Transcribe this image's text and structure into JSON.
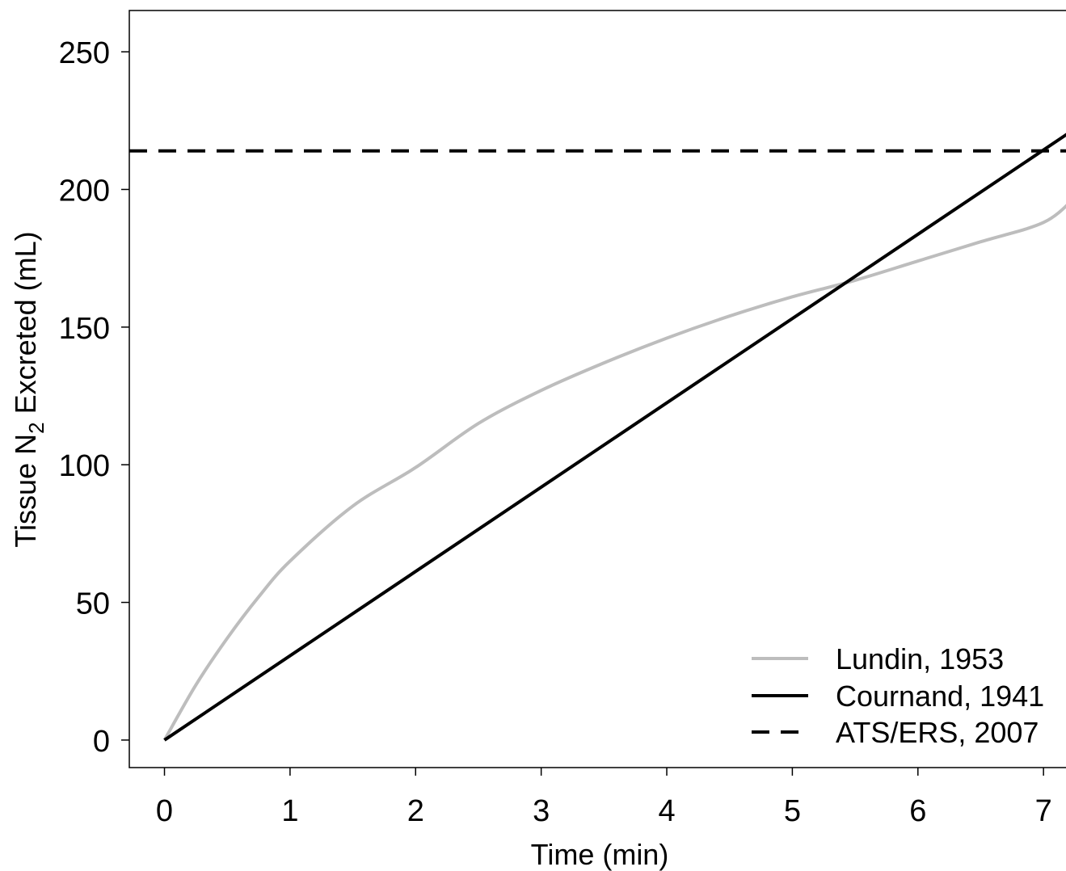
{
  "chart_data": {
    "type": "line",
    "xlabel": "Time (min)",
    "ylabel": {
      "prefix": "Tissue N",
      "subscript": "2",
      "suffix": " Excreted (mL)"
    },
    "xlim": [
      -0.28,
      7.25
    ],
    "ylim": [
      -10,
      265
    ],
    "x_ticks": [
      0,
      1,
      2,
      3,
      4,
      5,
      6,
      7
    ],
    "y_ticks": [
      0,
      50,
      100,
      150,
      200,
      250
    ],
    "x_tick_labels": [
      "0",
      "1",
      "2",
      "3",
      "4",
      "5",
      "6",
      "7"
    ],
    "y_tick_labels": [
      "0",
      "50",
      "100",
      "150",
      "200",
      "250"
    ],
    "grid": false,
    "legend_position": "bottom-right",
    "series": [
      {
        "name": "Lundin, 1953",
        "color": "#bdbdbd",
        "dash": "solid",
        "x": [
          0,
          0.25,
          0.5,
          0.75,
          1,
          1.5,
          2,
          2.5,
          3,
          3.5,
          4,
          4.5,
          5,
          5.5,
          6,
          6.5,
          7,
          7.25
        ],
        "y": [
          0,
          20,
          37,
          52,
          65,
          85,
          99,
          115,
          127,
          137,
          146,
          154,
          161,
          167,
          174,
          181,
          188,
          197
        ]
      },
      {
        "name": "Cournand, 1941",
        "color": "#000000",
        "dash": "solid",
        "x": [
          0,
          7.25
        ],
        "y": [
          0,
          222
        ]
      },
      {
        "name": "ATS/ERS, 2007",
        "color": "#000000",
        "dash": "dashed",
        "x": [
          -0.28,
          7.25
        ],
        "y": [
          214,
          214
        ]
      }
    ]
  }
}
